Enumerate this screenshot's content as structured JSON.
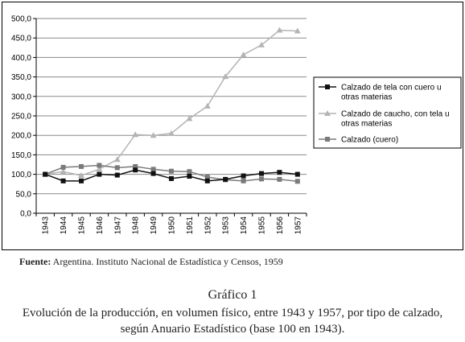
{
  "chart_data": {
    "type": "line",
    "categories": [
      "1943",
      "1944",
      "1945",
      "1946",
      "1947",
      "1948",
      "1949",
      "1950",
      "1951",
      "1952",
      "1953",
      "1954",
      "1955",
      "1956",
      "1957"
    ],
    "ylim": [
      0,
      500
    ],
    "yticks": [
      "0,0",
      "50,0",
      "100,0",
      "150,0",
      "200,0",
      "250,0",
      "300,0",
      "350,0",
      "400,0",
      "450,0",
      "500,0"
    ],
    "grid": "horizontal",
    "legend_position": "right",
    "series": [
      {
        "name_lines": [
          "Calzado de tela con cuero u",
          "otras materias"
        ],
        "values": [
          100,
          83,
          83,
          100,
          98,
          111,
          102,
          89,
          95,
          83,
          87,
          96,
          102,
          105,
          100
        ],
        "color": "#111111",
        "marker": "square"
      },
      {
        "name_lines": [
          "Calzado de caucho, con tela u",
          "otras materias"
        ],
        "values": [
          100,
          107,
          97,
          113,
          138,
          202,
          200,
          205,
          243,
          275,
          351,
          407,
          432,
          470,
          468
        ],
        "color": "#b4b4b4",
        "marker": "triangle"
      },
      {
        "name_lines": [
          "Calzado (cuero)"
        ],
        "values": [
          100,
          118,
          120,
          123,
          117,
          120,
          113,
          108,
          107,
          93,
          86,
          83,
          88,
          87,
          82
        ],
        "color": "#7a7a7a",
        "marker": "square"
      }
    ]
  },
  "source": {
    "label": "Fuente:",
    "text": " Argentina. Instituto Nacional de Estadística y Censos, 1959"
  },
  "caption": {
    "title": "Gráfico 1",
    "subtitle": "Evolución de la producción, en volumen físico, entre 1943 y 1957, por tipo de calzado, según Anuario Estadístico (base 100 en 1943)."
  }
}
